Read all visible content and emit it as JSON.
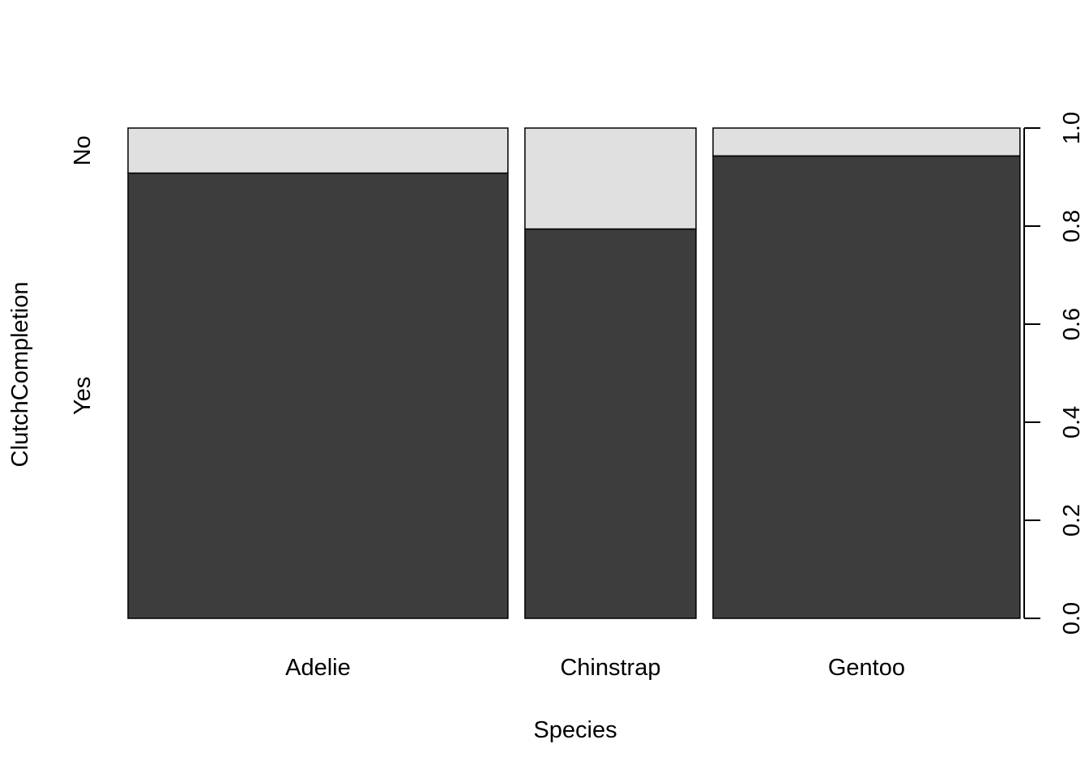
{
  "chart_data": {
    "type": "bar",
    "subtype": "spineplot",
    "xlabel": "Species",
    "ylabel": "ClutchCompletion",
    "categories": [
      "Adelie",
      "Chinstrap",
      "Gentoo"
    ],
    "category_share": [
      0.4415,
      0.1988,
      0.3567
    ],
    "series": [
      {
        "name": "Yes",
        "values": [
          0.908,
          0.794,
          0.943
        ]
      },
      {
        "name": "No",
        "values": [
          0.092,
          0.206,
          0.057
        ]
      }
    ],
    "ylim": [
      0,
      1
    ],
    "right_axis_ticks": [
      "0.0",
      "0.2",
      "0.4",
      "0.6",
      "0.8",
      "1.0"
    ],
    "left_axis_labels": [
      "Yes",
      "No"
    ],
    "colors": {
      "Yes": "#3d3d3d",
      "No": "#e0e0e0",
      "border": "#000000"
    },
    "grid": false,
    "legend": "none"
  }
}
